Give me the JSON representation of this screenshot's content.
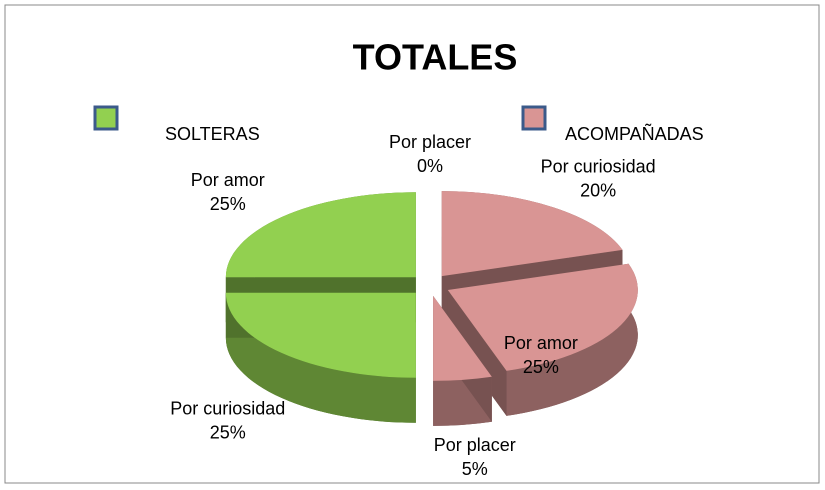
{
  "chart_data": {
    "type": "pie",
    "title": "TOTALES",
    "series": [
      {
        "name": "SOLTERAS",
        "color": "#92d050",
        "categories": [
          "Por curiosidad",
          "Por amor",
          "Por placer"
        ],
        "values": [
          25,
          25,
          0
        ],
        "value_labels": [
          "25%",
          "25%",
          "0%"
        ]
      },
      {
        "name": "ACOMPAÑADAS",
        "color": "#d99594",
        "categories": [
          "Por curiosidad",
          "Por amor",
          "Por placer"
        ],
        "values": [
          20,
          25,
          5
        ],
        "value_labels": [
          "20%",
          "25%",
          "5%"
        ]
      }
    ]
  }
}
